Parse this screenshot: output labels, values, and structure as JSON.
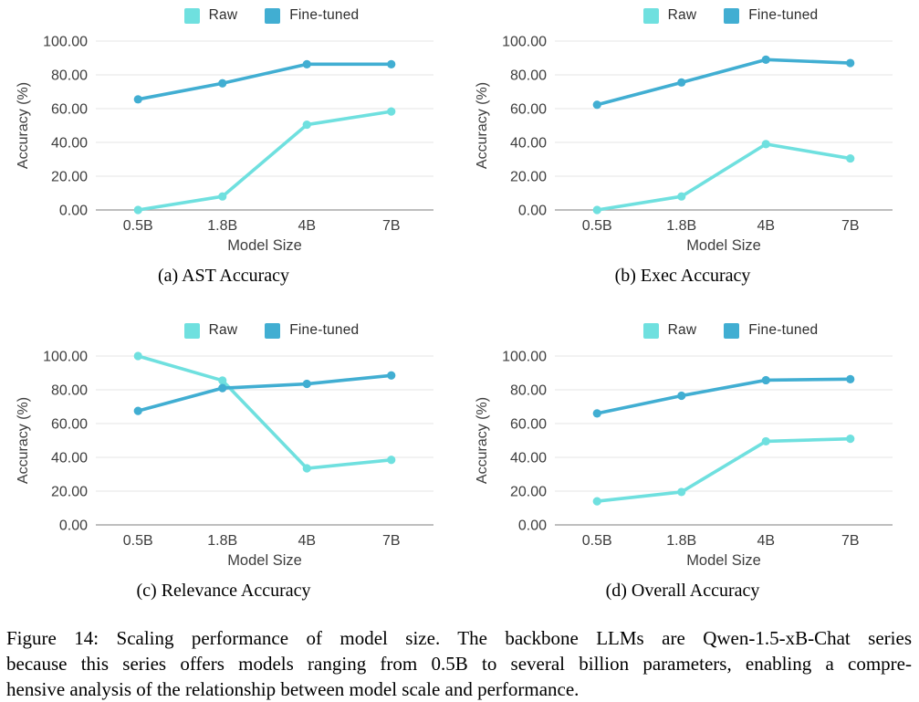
{
  "colors": {
    "raw": "#6fe0df",
    "fine_tuned": "#41aed2",
    "grid_line": "#e4e4e4",
    "axis_line": "#a9a9a9",
    "tick_text": "#3d3d3d"
  },
  "legend": {
    "raw_label": "Raw",
    "fine_tuned_label": "Fine-tuned"
  },
  "chart_data": [
    {
      "type": "line",
      "id": "a",
      "title": "(a) AST Accuracy",
      "xlabel": "Model Size",
      "ylabel": "Accuracy (%)",
      "categories": [
        "0.5B",
        "1.8B",
        "4B",
        "7B"
      ],
      "ylim": [
        0,
        100
      ],
      "yticks": [
        0,
        20,
        40,
        60,
        80,
        100
      ],
      "ytick_format": "2dp",
      "grid": true,
      "legend_position": "top",
      "series": [
        {
          "name": "Raw",
          "values": [
            0.0,
            8.0,
            50.5,
            58.3
          ]
        },
        {
          "name": "Fine-tuned",
          "values": [
            65.5,
            75.0,
            86.3,
            86.3
          ]
        }
      ]
    },
    {
      "type": "line",
      "id": "b",
      "title": "(b) Exec Accuracy",
      "xlabel": "Model Size",
      "ylabel": "Accuracy (%)",
      "categories": [
        "0.5B",
        "1.8B",
        "4B",
        "7B"
      ],
      "ylim": [
        0,
        100
      ],
      "yticks": [
        0,
        20,
        40,
        60,
        80,
        100
      ],
      "ytick_format": "2dp",
      "grid": true,
      "legend_position": "top",
      "series": [
        {
          "name": "Raw",
          "values": [
            0.0,
            8.0,
            39.0,
            30.5
          ]
        },
        {
          "name": "Fine-tuned",
          "values": [
            62.3,
            75.5,
            89.0,
            87.0
          ]
        }
      ]
    },
    {
      "type": "line",
      "id": "c",
      "title": "(c) Relevance Accuracy",
      "xlabel": "Model Size",
      "ylabel": "Accuracy (%)",
      "categories": [
        "0.5B",
        "1.8B",
        "4B",
        "7B"
      ],
      "ylim": [
        0,
        100
      ],
      "yticks": [
        0,
        20,
        40,
        60,
        80,
        100
      ],
      "ytick_format": "2dp",
      "grid": true,
      "legend_position": "top",
      "series": [
        {
          "name": "Raw",
          "values": [
            100.0,
            85.5,
            33.5,
            38.5
          ]
        },
        {
          "name": "Fine-tuned",
          "values": [
            67.5,
            81.0,
            83.5,
            88.5
          ]
        }
      ]
    },
    {
      "type": "line",
      "id": "d",
      "title": "(d) Overall Accuracy",
      "xlabel": "Model Size",
      "ylabel": "Accuracy (%)",
      "categories": [
        "0.5B",
        "1.8B",
        "4B",
        "7B"
      ],
      "ylim": [
        0,
        100
      ],
      "yticks": [
        0,
        20,
        40,
        60,
        80,
        100
      ],
      "ytick_format": "2dp",
      "grid": true,
      "legend_position": "top",
      "series": [
        {
          "name": "Raw",
          "values": [
            14.0,
            19.5,
            49.5,
            51.0
          ]
        },
        {
          "name": "Fine-tuned",
          "values": [
            66.0,
            76.5,
            85.7,
            86.3
          ]
        }
      ]
    }
  ],
  "figure_caption": {
    "lines": [
      "Figure 14: Scaling performance of model size. The backbone LLMs are Qwen-1.5-xB-Chat series",
      "because this series offers models ranging from 0.5B to several billion parameters, enabling a compre-",
      "hensive analysis of the relationship between model scale and performance."
    ]
  }
}
